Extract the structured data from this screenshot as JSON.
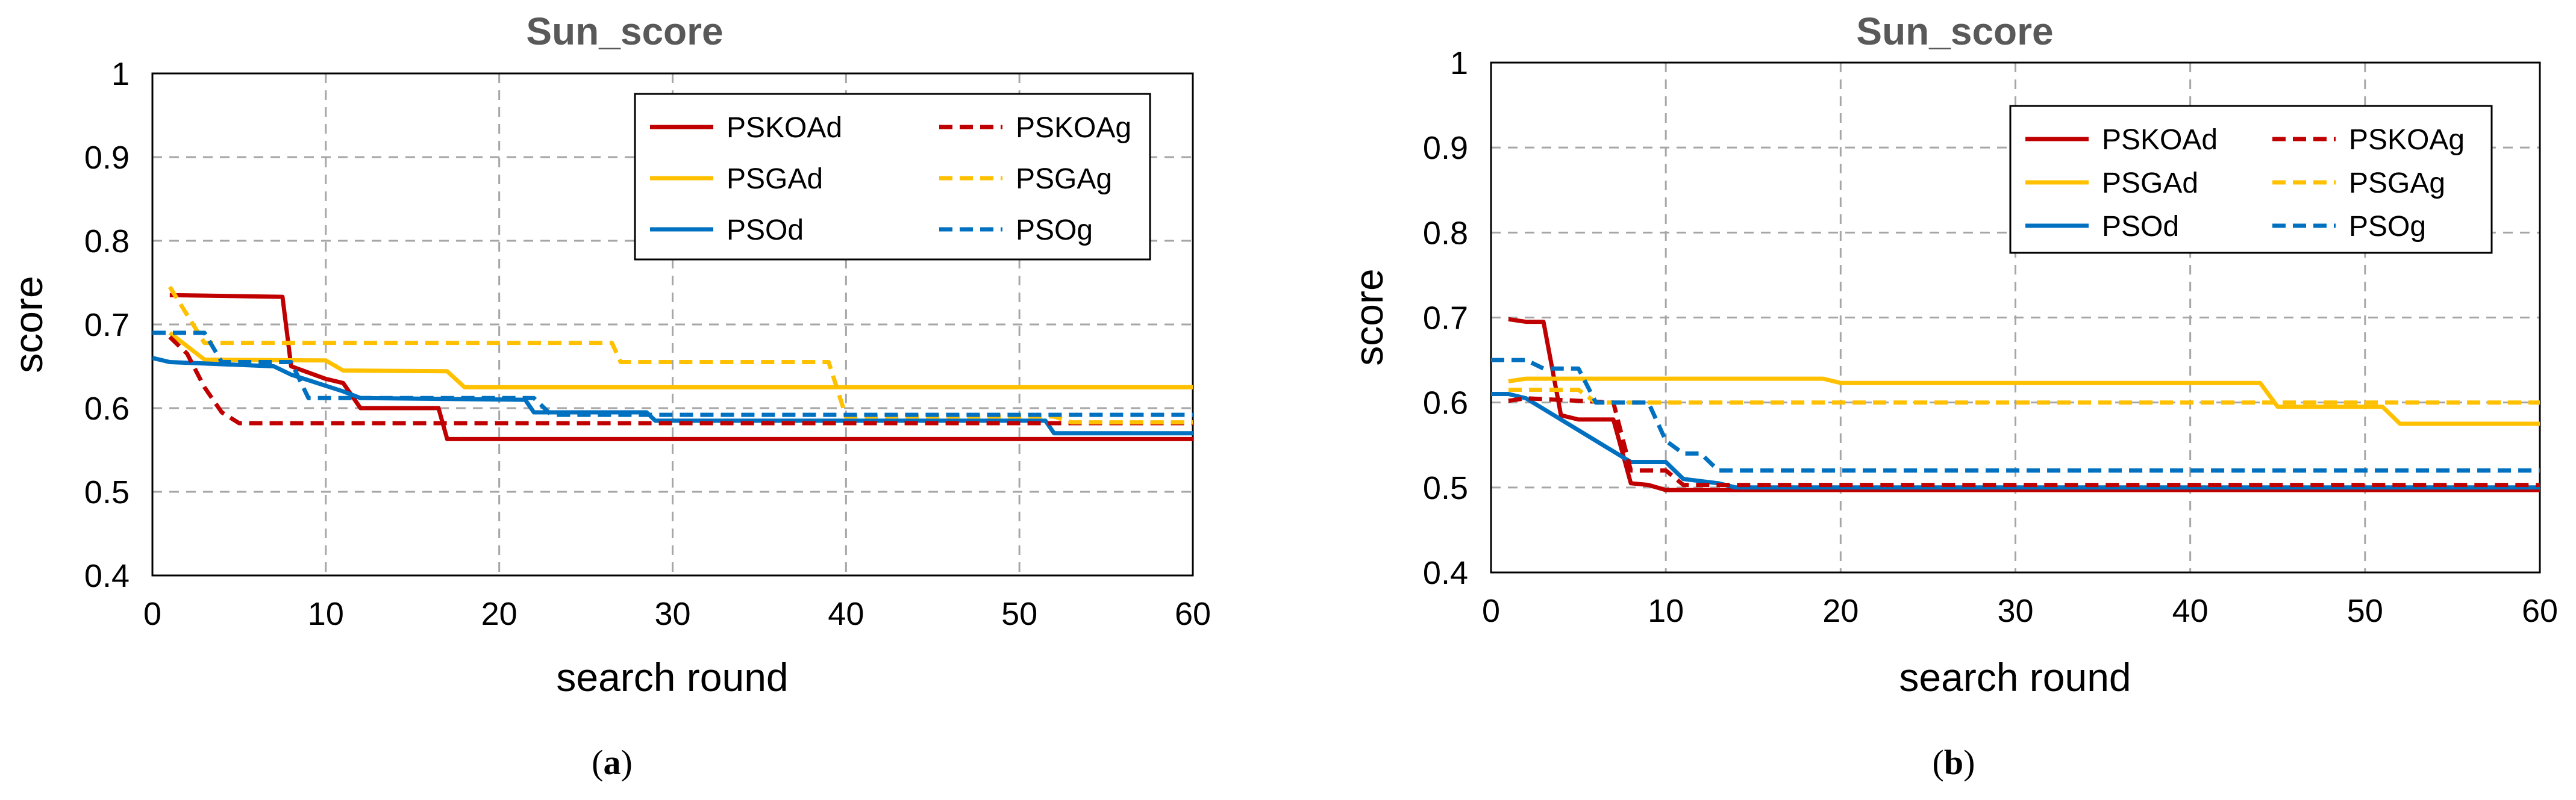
{
  "chart_data": [
    {
      "type": "line",
      "title": "Sun_score",
      "xlabel": "search round",
      "ylabel": "score",
      "caption": "a",
      "xlim": [
        0,
        60
      ],
      "ylim": [
        0.4,
        1
      ],
      "xticks": [
        "0",
        "10",
        "20",
        "30",
        "40",
        "50",
        "60"
      ],
      "yticks": [
        "0.4",
        "0.5",
        "0.6",
        "0.7",
        "0.8",
        "0.9",
        "1"
      ],
      "grid": true,
      "legend_position": "top-right",
      "series": [
        {
          "name": "PSKOAd",
          "color": "#c00000",
          "dash": "solid",
          "x": [
            1,
            7.5,
            8,
            10,
            11,
            12,
            16.5,
            17,
            60
          ],
          "y": [
            0.735,
            0.733,
            0.65,
            0.635,
            0.63,
            0.6,
            0.6,
            0.563,
            0.563
          ]
        },
        {
          "name": "PSKOAg",
          "color": "#c00000",
          "dash": "dashed",
          "x": [
            1,
            2,
            3,
            4,
            5,
            60
          ],
          "y": [
            0.685,
            0.665,
            0.625,
            0.595,
            0.582,
            0.582
          ]
        },
        {
          "name": "PSGAd",
          "color": "#ffc000",
          "dash": "solid",
          "x": [
            1,
            3,
            10,
            11,
            17,
            18,
            60
          ],
          "y": [
            0.69,
            0.658,
            0.657,
            0.645,
            0.644,
            0.625,
            0.625
          ]
        },
        {
          "name": "PSGAg",
          "color": "#ffc000",
          "dash": "dashed",
          "x": [
            1,
            3,
            26.5,
            27,
            39,
            40,
            52,
            53,
            60
          ],
          "y": [
            0.745,
            0.678,
            0.678,
            0.655,
            0.655,
            0.59,
            0.59,
            0.583,
            0.583
          ]
        },
        {
          "name": "PSOd",
          "color": "#0070c0",
          "dash": "solid",
          "x": [
            0,
            1,
            7,
            8,
            11,
            12,
            21.5,
            22,
            28.5,
            29,
            51.5,
            52,
            60
          ],
          "y": [
            0.66,
            0.655,
            0.65,
            0.64,
            0.62,
            0.612,
            0.61,
            0.595,
            0.595,
            0.585,
            0.585,
            0.57,
            0.57
          ],
          "step": true
        },
        {
          "name": "PSOg",
          "color": "#0070c0",
          "dash": "dashed",
          "x": [
            0,
            3,
            4,
            8,
            9,
            22,
            23,
            60
          ],
          "y": [
            0.69,
            0.69,
            0.655,
            0.655,
            0.612,
            0.612,
            0.592,
            0.592
          ],
          "step": true
        }
      ]
    },
    {
      "type": "line",
      "title": "Sun_score",
      "xlabel": "search round",
      "ylabel": "score",
      "caption": "b",
      "xlim": [
        0,
        60
      ],
      "ylim": [
        0.4,
        1
      ],
      "xticks": [
        "0",
        "10",
        "20",
        "30",
        "40",
        "50",
        "60"
      ],
      "yticks": [
        "0.4",
        "0.5",
        "0.6",
        "0.7",
        "0.8",
        "0.9",
        "1"
      ],
      "grid": true,
      "legend_position": "top-right",
      "series": [
        {
          "name": "PSKOAd",
          "color": "#c00000",
          "dash": "solid",
          "x": [
            1,
            2,
            3,
            4,
            5,
            6,
            7,
            8,
            9,
            10,
            60
          ],
          "y": [
            0.698,
            0.695,
            0.695,
            0.585,
            0.58,
            0.58,
            0.58,
            0.505,
            0.503,
            0.497,
            0.497
          ],
          "step": true
        },
        {
          "name": "PSKOAg",
          "color": "#c00000",
          "dash": "dashed",
          "x": [
            1,
            2,
            7,
            8,
            10,
            11,
            60
          ],
          "y": [
            0.602,
            0.605,
            0.6,
            0.52,
            0.52,
            0.503,
            0.503
          ],
          "step": true
        },
        {
          "name": "PSGAd",
          "color": "#ffc000",
          "dash": "solid",
          "x": [
            1,
            2,
            19,
            20,
            44,
            45,
            51,
            52,
            60
          ],
          "y": [
            0.625,
            0.628,
            0.628,
            0.623,
            0.623,
            0.595,
            0.595,
            0.575,
            0.575
          ]
        },
        {
          "name": "PSGAg",
          "color": "#ffc000",
          "dash": "dashed",
          "x": [
            1,
            5,
            6,
            60
          ],
          "y": [
            0.615,
            0.615,
            0.6,
            0.6
          ],
          "step": true
        },
        {
          "name": "PSOd",
          "color": "#0070c0",
          "dash": "solid",
          "x": [
            0,
            1,
            2,
            8,
            10,
            11,
            13,
            14,
            60
          ],
          "y": [
            0.61,
            0.61,
            0.605,
            0.53,
            0.53,
            0.51,
            0.505,
            0.5,
            0.5
          ],
          "step": true
        },
        {
          "name": "PSOg",
          "color": "#0070c0",
          "dash": "dashed",
          "x": [
            0,
            2,
            3,
            5,
            6,
            9,
            10,
            11,
            12,
            13,
            60
          ],
          "y": [
            0.65,
            0.65,
            0.64,
            0.64,
            0.6,
            0.6,
            0.555,
            0.54,
            0.54,
            0.52,
            0.52
          ],
          "step": true
        }
      ]
    }
  ]
}
